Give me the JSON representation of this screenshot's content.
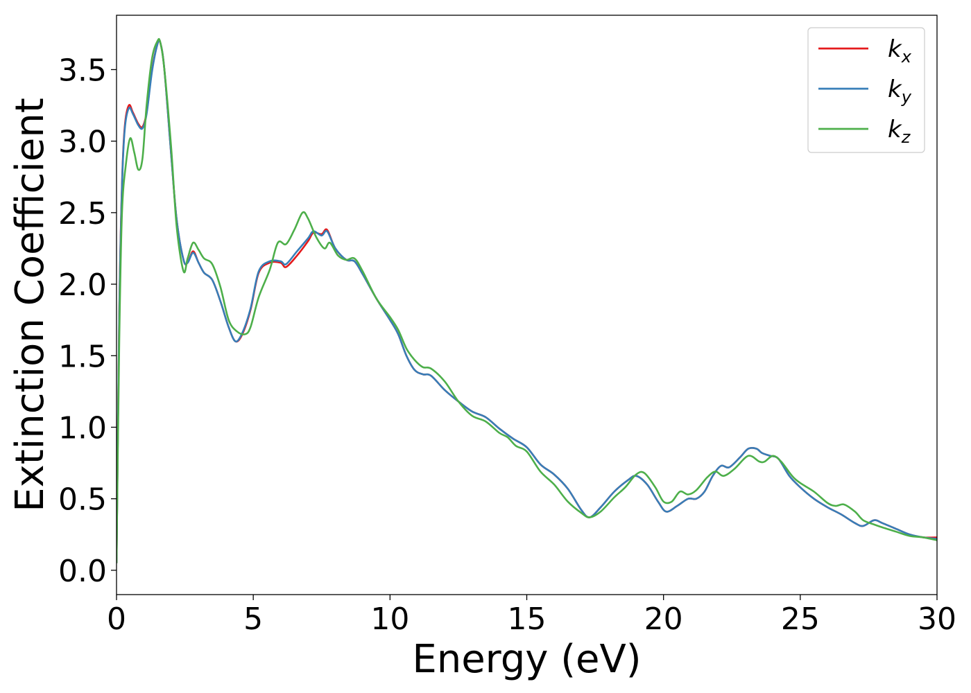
{
  "chart_data": {
    "type": "line",
    "xlabel": "Energy (eV)",
    "ylabel": "Extinction Coefficient",
    "xlim": [
      0,
      30
    ],
    "ylim": [
      -0.17,
      3.88
    ],
    "x_ticks": [
      0,
      5,
      10,
      15,
      20,
      25,
      30
    ],
    "x_tick_labels": [
      "0",
      "5",
      "10",
      "15",
      "20",
      "25",
      "30"
    ],
    "y_ticks": [
      0.0,
      0.5,
      1.0,
      1.5,
      2.0,
      2.5,
      3.0,
      3.5
    ],
    "y_tick_labels": [
      "0.0",
      "0.5",
      "1.0",
      "1.5",
      "2.0",
      "2.5",
      "3.0",
      "3.5"
    ],
    "grid": false,
    "legend_position": "top-right",
    "series": [
      {
        "name": "k_x",
        "label_main": "k",
        "label_sub": "x",
        "color": "#e41a1c",
        "x": [
          0,
          0.1,
          0.2,
          0.3,
          0.45,
          0.6,
          0.8,
          0.95,
          1.1,
          1.3,
          1.5,
          1.6,
          1.75,
          2.0,
          2.2,
          2.45,
          2.6,
          2.8,
          3.0,
          3.2,
          3.5,
          3.8,
          4.1,
          4.35,
          4.6,
          4.9,
          5.2,
          5.6,
          6.0,
          6.2,
          6.6,
          7.0,
          7.2,
          7.5,
          7.7,
          8.0,
          8.4,
          8.7,
          9.0,
          9.5,
          10.0,
          10.3,
          10.6,
          10.9,
          11.2,
          11.5,
          12.0,
          12.5,
          13.0,
          13.5,
          14.0,
          14.5,
          15.0,
          15.5,
          16.0,
          16.5,
          17.0,
          17.3,
          17.7,
          18.2,
          18.7,
          19.0,
          19.4,
          19.8,
          20.1,
          20.5,
          20.9,
          21.2,
          21.5,
          21.8,
          22.1,
          22.4,
          22.8,
          23.1,
          23.4,
          23.6,
          23.9,
          24.2,
          24.6,
          25.0,
          25.5,
          26.0,
          26.5,
          27.0,
          27.3,
          27.7,
          28.0,
          28.5,
          29.0,
          29.5,
          30.0
        ],
        "y": [
          0.05,
          1.8,
          2.7,
          3.1,
          3.25,
          3.2,
          3.12,
          3.1,
          3.2,
          3.5,
          3.68,
          3.69,
          3.5,
          2.9,
          2.45,
          2.17,
          2.15,
          2.23,
          2.15,
          2.08,
          2.03,
          1.88,
          1.7,
          1.6,
          1.65,
          1.82,
          2.08,
          2.15,
          2.15,
          2.12,
          2.2,
          2.3,
          2.36,
          2.35,
          2.38,
          2.25,
          2.17,
          2.16,
          2.07,
          1.9,
          1.75,
          1.65,
          1.5,
          1.4,
          1.37,
          1.36,
          1.26,
          1.18,
          1.11,
          1.07,
          0.99,
          0.92,
          0.86,
          0.74,
          0.67,
          0.57,
          0.42,
          0.37,
          0.44,
          0.55,
          0.63,
          0.66,
          0.6,
          0.48,
          0.41,
          0.45,
          0.5,
          0.5,
          0.55,
          0.66,
          0.73,
          0.72,
          0.79,
          0.85,
          0.85,
          0.82,
          0.8,
          0.78,
          0.66,
          0.58,
          0.5,
          0.44,
          0.39,
          0.33,
          0.31,
          0.35,
          0.33,
          0.29,
          0.25,
          0.23,
          0.23
        ]
      },
      {
        "name": "k_y",
        "label_main": "k",
        "label_sub": "y",
        "color": "#377eb8",
        "x": [
          0,
          0.1,
          0.2,
          0.3,
          0.45,
          0.6,
          0.8,
          0.95,
          1.1,
          1.3,
          1.5,
          1.6,
          1.75,
          2.0,
          2.2,
          2.45,
          2.6,
          2.8,
          3.0,
          3.2,
          3.5,
          3.8,
          4.1,
          4.35,
          4.6,
          4.9,
          5.2,
          5.6,
          6.0,
          6.2,
          6.6,
          7.0,
          7.2,
          7.5,
          7.7,
          8.0,
          8.4,
          8.7,
          9.0,
          9.5,
          10.0,
          10.3,
          10.6,
          10.9,
          11.2,
          11.5,
          12.0,
          12.5,
          13.0,
          13.5,
          14.0,
          14.5,
          15.0,
          15.5,
          16.0,
          16.5,
          17.0,
          17.3,
          17.7,
          18.2,
          18.7,
          19.0,
          19.4,
          19.8,
          20.1,
          20.5,
          20.9,
          21.2,
          21.5,
          21.8,
          22.1,
          22.4,
          22.8,
          23.1,
          23.4,
          23.6,
          23.9,
          24.2,
          24.6,
          25.0,
          25.5,
          26.0,
          26.5,
          27.0,
          27.3,
          27.7,
          28.0,
          28.5,
          29.0,
          29.5,
          30.0
        ],
        "y": [
          0.05,
          1.78,
          2.68,
          3.08,
          3.23,
          3.19,
          3.11,
          3.09,
          3.19,
          3.49,
          3.68,
          3.69,
          3.5,
          2.9,
          2.45,
          2.17,
          2.15,
          2.22,
          2.15,
          2.08,
          2.03,
          1.88,
          1.7,
          1.6,
          1.66,
          1.83,
          2.09,
          2.16,
          2.16,
          2.14,
          2.23,
          2.32,
          2.37,
          2.34,
          2.37,
          2.25,
          2.17,
          2.16,
          2.07,
          1.9,
          1.75,
          1.65,
          1.5,
          1.4,
          1.37,
          1.36,
          1.26,
          1.18,
          1.11,
          1.07,
          0.99,
          0.92,
          0.86,
          0.74,
          0.67,
          0.57,
          0.42,
          0.37,
          0.44,
          0.55,
          0.63,
          0.66,
          0.6,
          0.48,
          0.41,
          0.45,
          0.5,
          0.5,
          0.55,
          0.66,
          0.73,
          0.72,
          0.79,
          0.85,
          0.85,
          0.82,
          0.8,
          0.78,
          0.66,
          0.58,
          0.5,
          0.44,
          0.39,
          0.33,
          0.31,
          0.35,
          0.33,
          0.29,
          0.25,
          0.23,
          0.22
        ]
      },
      {
        "name": "k_z",
        "label_main": "k",
        "label_sub": "z",
        "color": "#4daf4a",
        "x": [
          0,
          0.1,
          0.2,
          0.35,
          0.5,
          0.65,
          0.8,
          0.95,
          1.1,
          1.3,
          1.5,
          1.6,
          1.75,
          2.0,
          2.2,
          2.45,
          2.6,
          2.8,
          3.0,
          3.2,
          3.5,
          3.8,
          4.1,
          4.4,
          4.7,
          4.9,
          5.2,
          5.6,
          5.9,
          6.2,
          6.5,
          6.8,
          7.0,
          7.3,
          7.6,
          7.8,
          8.1,
          8.4,
          8.7,
          9.0,
          9.5,
          10.0,
          10.3,
          10.6,
          10.9,
          11.2,
          11.5,
          12.0,
          12.5,
          13.0,
          13.5,
          14.0,
          14.3,
          14.6,
          15.0,
          15.5,
          16.0,
          16.5,
          17.0,
          17.3,
          17.7,
          18.2,
          18.6,
          19.0,
          19.3,
          19.7,
          20.0,
          20.3,
          20.6,
          20.9,
          21.2,
          21.6,
          21.9,
          22.2,
          22.6,
          23.1,
          23.5,
          23.7,
          24.0,
          24.3,
          24.7,
          25.0,
          25.5,
          26.0,
          26.3,
          26.6,
          27.0,
          27.3,
          27.7,
          28.0,
          28.5,
          29.0,
          29.5,
          30.0
        ],
        "y": [
          0.05,
          1.6,
          2.5,
          2.85,
          3.02,
          2.92,
          2.8,
          2.88,
          3.25,
          3.58,
          3.7,
          3.69,
          3.5,
          2.95,
          2.4,
          2.09,
          2.18,
          2.29,
          2.24,
          2.18,
          2.14,
          1.98,
          1.75,
          1.67,
          1.65,
          1.7,
          1.91,
          2.1,
          2.29,
          2.28,
          2.38,
          2.5,
          2.46,
          2.33,
          2.25,
          2.29,
          2.2,
          2.17,
          2.18,
          2.09,
          1.9,
          1.77,
          1.68,
          1.55,
          1.47,
          1.42,
          1.41,
          1.32,
          1.18,
          1.08,
          1.04,
          0.96,
          0.93,
          0.87,
          0.83,
          0.69,
          0.6,
          0.48,
          0.4,
          0.37,
          0.41,
          0.51,
          0.58,
          0.67,
          0.68,
          0.58,
          0.48,
          0.48,
          0.55,
          0.53,
          0.56,
          0.65,
          0.69,
          0.66,
          0.71,
          0.8,
          0.76,
          0.76,
          0.8,
          0.76,
          0.66,
          0.61,
          0.55,
          0.47,
          0.45,
          0.46,
          0.41,
          0.35,
          0.32,
          0.3,
          0.27,
          0.24,
          0.23,
          0.21
        ]
      }
    ]
  }
}
